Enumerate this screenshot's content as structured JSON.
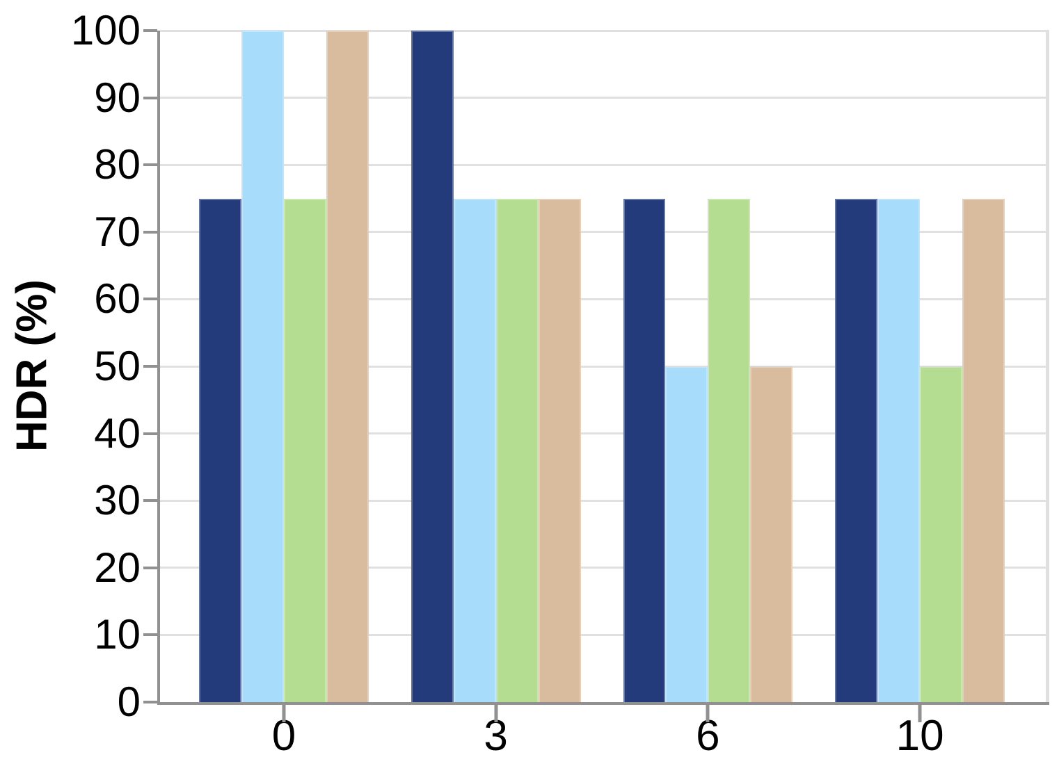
{
  "chart_data": {
    "type": "bar",
    "title": "",
    "xlabel": "",
    "ylabel": "HDR (%)",
    "categories": [
      "0",
      "3",
      "6",
      "10"
    ],
    "series": [
      {
        "name": "navy",
        "color": "#243B7B",
        "values": [
          75,
          100,
          75,
          75
        ]
      },
      {
        "name": "light-blue",
        "color": "#A7DCFB",
        "values": [
          100,
          75,
          50,
          75
        ]
      },
      {
        "name": "green",
        "color": "#B4DD91",
        "values": [
          75,
          75,
          75,
          50
        ]
      },
      {
        "name": "tan",
        "color": "#D9BC9E",
        "values": [
          100,
          75,
          50,
          75
        ]
      }
    ],
    "ylim": [
      0,
      100
    ],
    "yticks": [
      0,
      10,
      20,
      30,
      40,
      50,
      60,
      70,
      80,
      90,
      100
    ],
    "grid": true,
    "legend": false
  },
  "axis": {
    "spine_color": "#919191",
    "grid_color": "#E0E0E0",
    "text_color": "#000000"
  }
}
